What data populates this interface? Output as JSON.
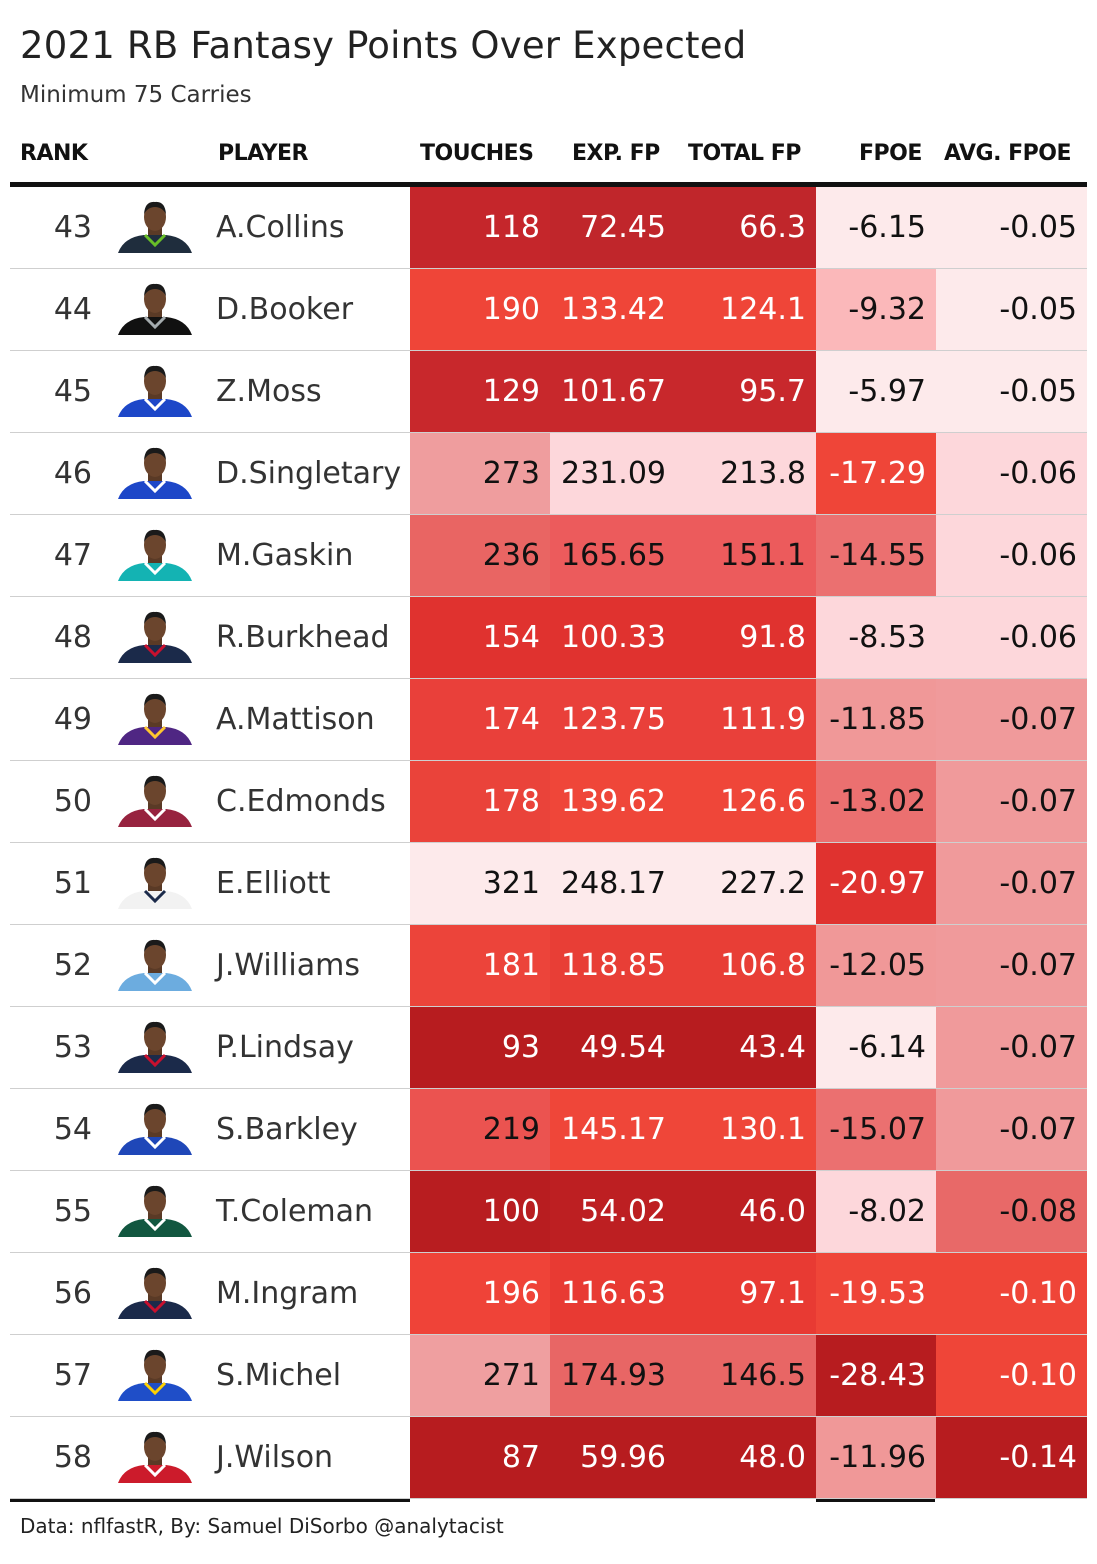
{
  "title": "2021 RB Fantasy Points Over Expected",
  "subtitle": "Minimum 75 Carries",
  "headers": {
    "rank": "RANK",
    "player": "PLAYER",
    "touches": "TOUCHES",
    "exp_fp": "EXP. FP",
    "total_fp": "TOTAL FP",
    "fpoe": "FPOE",
    "avg_fpoe": "AVG. FPOE"
  },
  "footer": "Data: nflfastR, By: Samuel DiSorbo @analytacist",
  "chart_data": {
    "type": "table",
    "columns": [
      "RANK",
      "PLAYER",
      "TOUCHES",
      "EXP. FP",
      "TOTAL FP",
      "FPOE",
      "AVG. FPOE"
    ],
    "rows": [
      {
        "rank": "43",
        "player": "A.Collins",
        "touches": "118",
        "exp_fp": "72.45",
        "total_fp": "66.3",
        "fpoe": "-6.15",
        "avg_fpoe": "-0.05",
        "jersey": "#1f2d3d",
        "trim": "#69be28"
      },
      {
        "rank": "44",
        "player": "D.Booker",
        "touches": "190",
        "exp_fp": "133.42",
        "total_fp": "124.1",
        "fpoe": "-9.32",
        "avg_fpoe": "-0.05",
        "jersey": "#111111",
        "trim": "#a5acaf"
      },
      {
        "rank": "45",
        "player": "Z.Moss",
        "touches": "129",
        "exp_fp": "101.67",
        "total_fp": "95.7",
        "fpoe": "-5.97",
        "avg_fpoe": "-0.05",
        "jersey": "#1d47c8",
        "trim": "#ffffff"
      },
      {
        "rank": "46",
        "player": "D.Singletary",
        "touches": "273",
        "exp_fp": "231.09",
        "total_fp": "213.8",
        "fpoe": "-17.29",
        "avg_fpoe": "-0.06",
        "jersey": "#1d47c8",
        "trim": "#ffffff"
      },
      {
        "rank": "47",
        "player": "M.Gaskin",
        "touches": "236",
        "exp_fp": "165.65",
        "total_fp": "151.1",
        "fpoe": "-14.55",
        "avg_fpoe": "-0.06",
        "jersey": "#14b3b3",
        "trim": "#ffffff"
      },
      {
        "rank": "48",
        "player": "R.Burkhead",
        "touches": "154",
        "exp_fp": "100.33",
        "total_fp": "91.8",
        "fpoe": "-8.53",
        "avg_fpoe": "-0.06",
        "jersey": "#1b2a4a",
        "trim": "#c8102e"
      },
      {
        "rank": "49",
        "player": "A.Mattison",
        "touches": "174",
        "exp_fp": "123.75",
        "total_fp": "111.9",
        "fpoe": "-11.85",
        "avg_fpoe": "-0.07",
        "jersey": "#4f2683",
        "trim": "#ffc62f"
      },
      {
        "rank": "50",
        "player": "C.Edmonds",
        "touches": "178",
        "exp_fp": "139.62",
        "total_fp": "126.6",
        "fpoe": "-13.02",
        "avg_fpoe": "-0.07",
        "jersey": "#97233f",
        "trim": "#ffffff"
      },
      {
        "rank": "51",
        "player": "E.Elliott",
        "touches": "321",
        "exp_fp": "248.17",
        "total_fp": "227.2",
        "fpoe": "-20.97",
        "avg_fpoe": "-0.07",
        "jersey": "#f2f2f2",
        "trim": "#1b2a4a"
      },
      {
        "rank": "52",
        "player": "J.Williams",
        "touches": "181",
        "exp_fp": "118.85",
        "total_fp": "106.8",
        "fpoe": "-12.05",
        "avg_fpoe": "-0.07",
        "jersey": "#6cacdf",
        "trim": "#ffffff"
      },
      {
        "rank": "53",
        "player": "P.Lindsay",
        "touches": "93",
        "exp_fp": "49.54",
        "total_fp": "43.4",
        "fpoe": "-6.14",
        "avg_fpoe": "-0.07",
        "jersey": "#1b2a4a",
        "trim": "#c8102e"
      },
      {
        "rank": "54",
        "player": "S.Barkley",
        "touches": "219",
        "exp_fp": "145.17",
        "total_fp": "130.1",
        "fpoe": "-15.07",
        "avg_fpoe": "-0.07",
        "jersey": "#1f47b8",
        "trim": "#ffffff"
      },
      {
        "rank": "55",
        "player": "T.Coleman",
        "touches": "100",
        "exp_fp": "54.02",
        "total_fp": "46.0",
        "fpoe": "-8.02",
        "avg_fpoe": "-0.08",
        "jersey": "#125740",
        "trim": "#ffffff"
      },
      {
        "rank": "56",
        "player": "M.Ingram",
        "touches": "196",
        "exp_fp": "116.63",
        "total_fp": "97.1",
        "fpoe": "-19.53",
        "avg_fpoe": "-0.10",
        "jersey": "#1b2a4a",
        "trim": "#c8102e"
      },
      {
        "rank": "57",
        "player": "S.Michel",
        "touches": "271",
        "exp_fp": "174.93",
        "total_fp": "146.5",
        "fpoe": "-28.43",
        "avg_fpoe": "-0.10",
        "jersey": "#1f4ec8",
        "trim": "#ffd100"
      },
      {
        "rank": "58",
        "player": "J.Wilson",
        "touches": "87",
        "exp_fp": "59.96",
        "total_fp": "48.0",
        "fpoe": "-11.96",
        "avg_fpoe": "-0.14",
        "jersey": "#cc1b2b",
        "trim": "#ffffff"
      }
    ],
    "cell_colors": {
      "touches": [
        "#c5262b",
        "#ef4538",
        "#c8282c",
        "#ef9d9e",
        "#e96563",
        "#e0322f",
        "#e9403a",
        "#ea433a",
        "#fdeaeb",
        "#ec443a",
        "#b71c1f",
        "#eb5350",
        "#b81d20",
        "#ef4338",
        "#ef9fa0",
        "#b71c1f"
      ],
      "exp_fp": [
        "#c0262b",
        "#ef4538",
        "#c8282c",
        "#fdd7db",
        "#ec5b5c",
        "#e0322f",
        "#e9403a",
        "#ef4639",
        "#fdeaeb",
        "#e83e36",
        "#b71c1f",
        "#ef4639",
        "#bd1f22",
        "#e83a33",
        "#e86665",
        "#b71c1f"
      ],
      "total_fp": [
        "#c0262b",
        "#ef4538",
        "#c8282c",
        "#fdd7db",
        "#ec5b5c",
        "#e0322f",
        "#e9403a",
        "#ef4639",
        "#fdeaeb",
        "#e83e36",
        "#b71c1f",
        "#ef4639",
        "#bd1f22",
        "#e83a33",
        "#e86665",
        "#b71c1f"
      ],
      "fpoe": [
        "#fdeaeb",
        "#fbb8ba",
        "#fdeaeb",
        "#ef4538",
        "#eb7070",
        "#fdd7db",
        "#f09898",
        "#eb7070",
        "#e0322f",
        "#f09898",
        "#fdeaeb",
        "#eb7070",
        "#fdd7db",
        "#ef4538",
        "#b71c1f",
        "#f09898"
      ],
      "avg_fpoe": [
        "#fdeaeb",
        "#fdeaeb",
        "#fdeaeb",
        "#fdd7db",
        "#fdd7db",
        "#fdd7db",
        "#f09a9b",
        "#f09a9b",
        "#f09a9b",
        "#f09a9b",
        "#f09a9b",
        "#f09a9b",
        "#e86968",
        "#ef4538",
        "#ef4538",
        "#b71c1f"
      ]
    },
    "text_colors": {
      "touches": [
        "#ffffff",
        "#ffffff",
        "#ffffff",
        "#111111",
        "#111111",
        "#ffffff",
        "#ffffff",
        "#ffffff",
        "#111111",
        "#ffffff",
        "#ffffff",
        "#111111",
        "#ffffff",
        "#ffffff",
        "#111111",
        "#ffffff"
      ],
      "exp_fp": [
        "#ffffff",
        "#ffffff",
        "#ffffff",
        "#111111",
        "#111111",
        "#ffffff",
        "#ffffff",
        "#ffffff",
        "#111111",
        "#ffffff",
        "#ffffff",
        "#ffffff",
        "#ffffff",
        "#ffffff",
        "#111111",
        "#ffffff"
      ],
      "total_fp": [
        "#ffffff",
        "#ffffff",
        "#ffffff",
        "#111111",
        "#111111",
        "#ffffff",
        "#ffffff",
        "#ffffff",
        "#111111",
        "#ffffff",
        "#ffffff",
        "#ffffff",
        "#ffffff",
        "#ffffff",
        "#111111",
        "#ffffff"
      ],
      "fpoe": [
        "#111111",
        "#111111",
        "#111111",
        "#ffffff",
        "#111111",
        "#111111",
        "#111111",
        "#111111",
        "#ffffff",
        "#111111",
        "#111111",
        "#111111",
        "#111111",
        "#ffffff",
        "#ffffff",
        "#111111"
      ],
      "avg_fpoe": [
        "#111111",
        "#111111",
        "#111111",
        "#111111",
        "#111111",
        "#111111",
        "#111111",
        "#111111",
        "#111111",
        "#111111",
        "#111111",
        "#111111",
        "#111111",
        "#ffffff",
        "#ffffff",
        "#ffffff"
      ]
    }
  }
}
